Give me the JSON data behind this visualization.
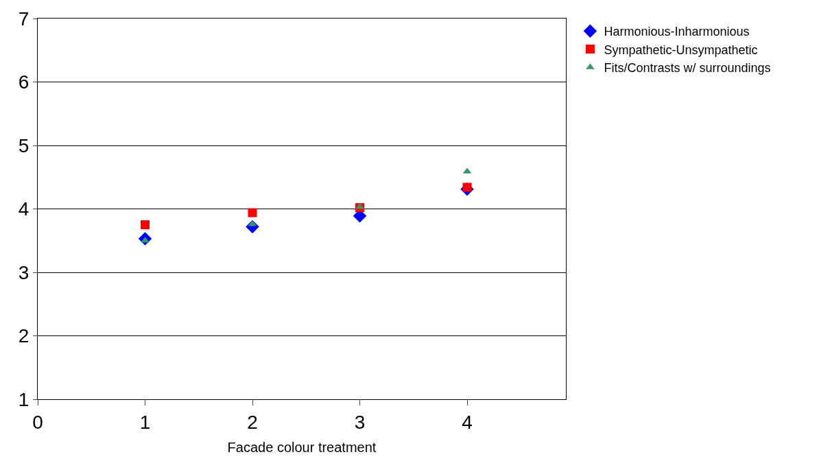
{
  "chart_data": {
    "type": "scatter",
    "xlabel": "Facade colour treatment",
    "x": [
      1,
      2,
      3,
      4
    ],
    "series": [
      {
        "name": "Harmonious-Inharmonious",
        "color": "#0000ff",
        "marker": "diamond",
        "values": [
          3.53,
          3.72,
          3.89,
          4.31
        ]
      },
      {
        "name": "Sympathetic-Unsympathetic",
        "color": "#ff0000",
        "marker": "square",
        "values": [
          3.75,
          3.94,
          4.02,
          4.34
        ]
      },
      {
        "name": "Fits/Contrasts w/ surroundings",
        "color": "#339966",
        "marker": "triangle",
        "values": [
          3.5,
          3.76,
          4.03,
          4.59
        ]
      }
    ],
    "xlim": [
      0,
      4.92
    ],
    "xticks": [
      0,
      1,
      2,
      3,
      4
    ],
    "ylim": [
      1,
      7
    ],
    "yticks": [
      1,
      2,
      3,
      4,
      5,
      6,
      7
    ],
    "grid": "y",
    "legend": "top right"
  }
}
